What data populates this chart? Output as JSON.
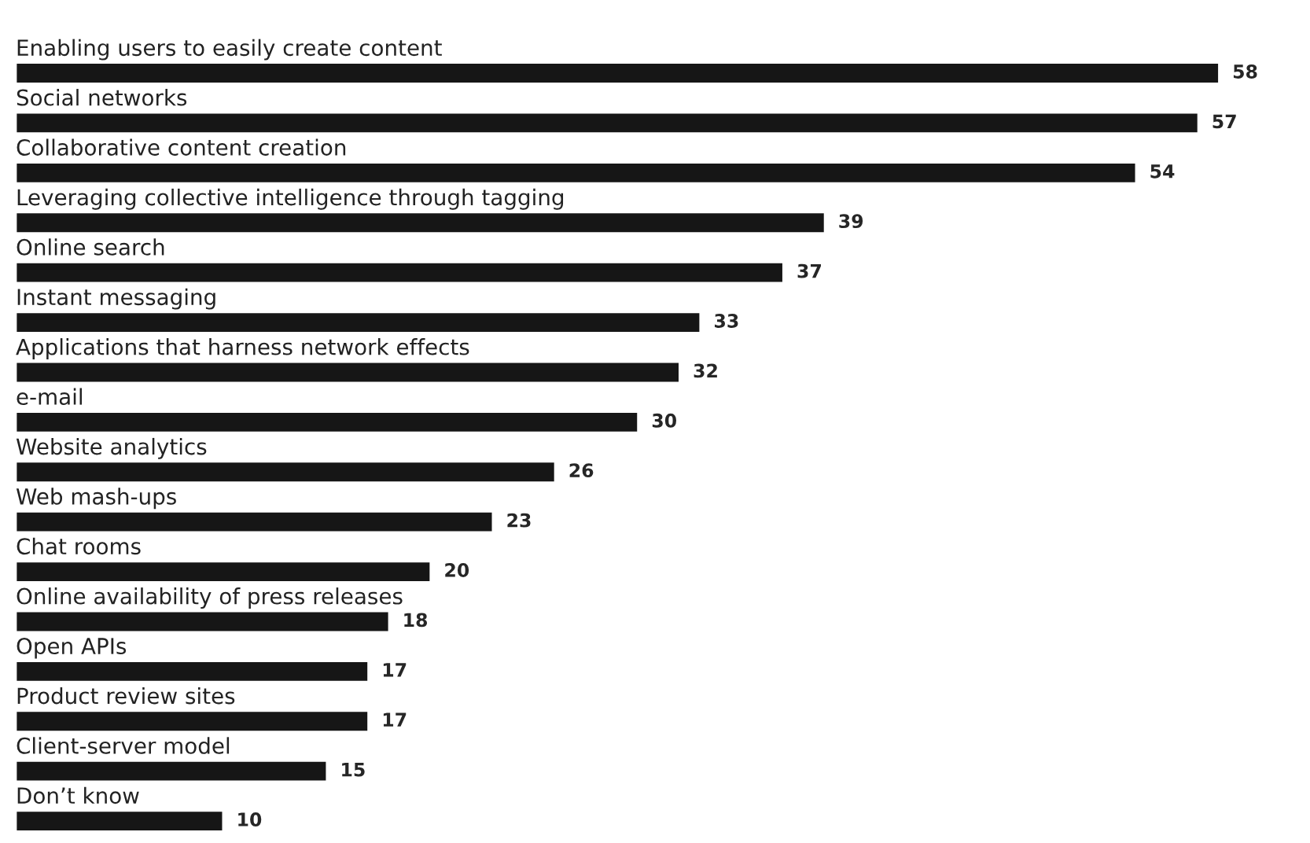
{
  "chart_data": {
    "type": "bar",
    "orientation": "horizontal",
    "data_labels": true,
    "categories": [
      "Enabling users to easily create content",
      "Social networks",
      "Collaborative content creation",
      "Leveraging collective intelligence through tagging",
      "Online search",
      "Instant messaging",
      "Applications that harness network effects",
      "e-mail",
      "Website analytics",
      "Web mash-ups",
      "Chat rooms",
      "Online availability of press releases",
      "Open APIs",
      "Product review sites",
      "Client-server model",
      "Don’t know"
    ],
    "values": [
      58,
      57,
      54,
      39,
      37,
      33,
      32,
      30,
      26,
      23,
      20,
      18,
      17,
      17,
      15,
      10
    ],
    "color": "#161616"
  }
}
